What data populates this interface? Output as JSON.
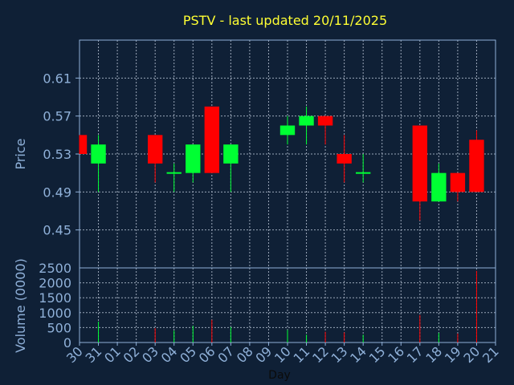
{
  "chart_data": {
    "type": "candlestick",
    "title": "PSTV - last updated 20/11/2025",
    "xlabel": "Day",
    "price_axis": {
      "label": "Price",
      "ylim": [
        0.41,
        0.65
      ],
      "ticks": [
        0.45,
        0.49,
        0.53,
        0.57,
        0.61
      ],
      "tick_labels": [
        "0.45",
        "0.49",
        "0.53",
        "0.57",
        "0.61"
      ]
    },
    "volume_axis": {
      "label": "Volume (0000)",
      "ylim": [
        0,
        2500
      ],
      "ticks": [
        0,
        500,
        1000,
        1500,
        2000,
        2500
      ],
      "tick_labels": [
        "0",
        "500",
        "1000",
        "1500",
        "2000",
        "2500"
      ]
    },
    "x_ticks": [
      "30",
      "31",
      "01",
      "02",
      "03",
      "04",
      "05",
      "06",
      "07",
      "08",
      "09",
      "10",
      "11",
      "12",
      "13",
      "14",
      "15",
      "16",
      "17",
      "18",
      "19",
      "20",
      "21"
    ],
    "grid": true,
    "colors": {
      "up": "#00ff33",
      "down": "#ff0000",
      "axis_text": "#8fb0d8",
      "title": "#ffff33",
      "grid": "#9aa6b8",
      "background": "#0f2036"
    },
    "candles": [
      {
        "day": "30",
        "open": 0.55,
        "high": 0.55,
        "low": 0.53,
        "close": 0.53,
        "volume": 0
      },
      {
        "day": "31",
        "open": 0.52,
        "high": 0.55,
        "low": 0.49,
        "close": 0.54,
        "volume": 700
      },
      {
        "day": "03",
        "open": 0.55,
        "high": 0.55,
        "low": 0.5,
        "close": 0.52,
        "volume": 480
      },
      {
        "day": "04",
        "open": 0.51,
        "high": 0.52,
        "low": 0.49,
        "close": 0.51,
        "volume": 400
      },
      {
        "day": "05",
        "open": 0.51,
        "high": 0.54,
        "low": 0.5,
        "close": 0.54,
        "volume": 560
      },
      {
        "day": "06",
        "open": 0.58,
        "high": 0.58,
        "low": 0.51,
        "close": 0.51,
        "volume": 760
      },
      {
        "day": "07",
        "open": 0.52,
        "high": 0.54,
        "low": 0.49,
        "close": 0.54,
        "volume": 520
      },
      {
        "day": "10",
        "open": 0.55,
        "high": 0.57,
        "low": 0.54,
        "close": 0.56,
        "volume": 420
      },
      {
        "day": "11",
        "open": 0.56,
        "high": 0.58,
        "low": 0.54,
        "close": 0.57,
        "volume": 260
      },
      {
        "day": "12",
        "open": 0.57,
        "high": 0.57,
        "low": 0.54,
        "close": 0.56,
        "volume": 360
      },
      {
        "day": "13",
        "open": 0.53,
        "high": 0.55,
        "low": 0.5,
        "close": 0.52,
        "volume": 340
      },
      {
        "day": "14",
        "open": 0.51,
        "high": 0.53,
        "low": 0.5,
        "close": 0.51,
        "volume": 260
      },
      {
        "day": "17",
        "open": 0.56,
        "high": 0.56,
        "low": 0.46,
        "close": 0.48,
        "volume": 920
      },
      {
        "day": "18",
        "open": 0.48,
        "high": 0.52,
        "low": 0.48,
        "close": 0.51,
        "volume": 320
      },
      {
        "day": "19",
        "open": 0.51,
        "high": 0.51,
        "low": 0.48,
        "close": 0.49,
        "volume": 300
      },
      {
        "day": "20",
        "open": 0.545,
        "high": 0.555,
        "low": 0.49,
        "close": 0.49,
        "volume": 2400
      }
    ]
  }
}
